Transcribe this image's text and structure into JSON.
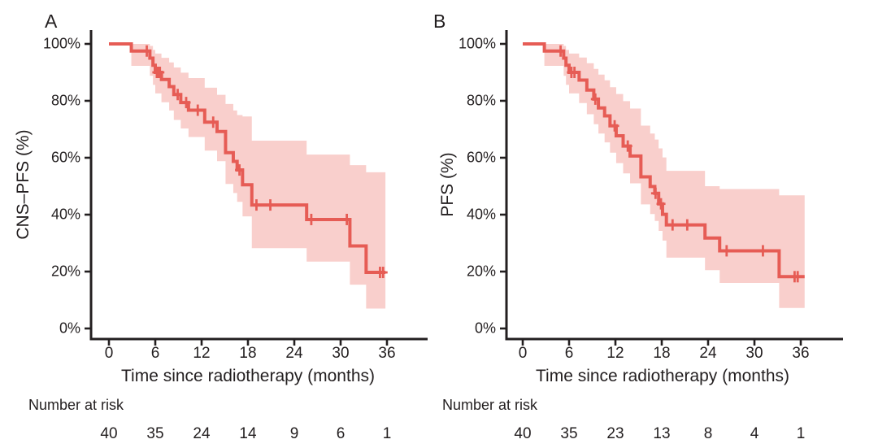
{
  "figure": {
    "background": "#ffffff",
    "text_color": "#231f20",
    "axis_color": "#231f20",
    "line_color": "#e65c55",
    "band_color": "#f9cfcc",
    "x_tick_labels": [
      "0",
      "6",
      "12",
      "18",
      "24",
      "30",
      "36"
    ],
    "x_tick_values": [
      0,
      6,
      12,
      18,
      24,
      30,
      36
    ],
    "y_tick_labels": [
      "100%",
      "80%",
      "60%",
      "40%",
      "20%",
      "0%"
    ],
    "y_tick_values": [
      100,
      80,
      60,
      40,
      20,
      0
    ]
  },
  "chart_data": [
    {
      "type": "line",
      "subtype": "kaplan-meier-step",
      "panel_label": "A",
      "ylabel": "CNS–PFS (%)",
      "xlabel": "Time since radiotherapy (months)",
      "risk_header": "Number at risk",
      "xlim": [
        0,
        41
      ],
      "ylim": [
        0,
        100
      ],
      "x_ticks": [
        0,
        6,
        12,
        18,
        24,
        30,
        36
      ],
      "y_ticks": [
        100,
        80,
        60,
        40,
        20,
        0
      ],
      "legend": "none",
      "grid": "off",
      "follow_up_end": 35.8,
      "steps": [
        [
          0,
          100
        ],
        [
          2.9,
          97.5
        ],
        [
          5.3,
          95
        ],
        [
          5.7,
          92.5
        ],
        [
          6,
          90
        ],
        [
          6.8,
          87.5
        ],
        [
          7.8,
          85
        ],
        [
          8.4,
          82.2
        ],
        [
          9.3,
          79.4
        ],
        [
          10.3,
          76.7
        ],
        [
          12.4,
          72.5
        ],
        [
          14,
          69.2
        ],
        [
          15.1,
          61.8
        ],
        [
          16.1,
          58.7
        ],
        [
          16.6,
          55.7
        ],
        [
          17.3,
          50.5
        ],
        [
          18.5,
          43.4
        ],
        [
          25.6,
          38.3
        ],
        [
          31.2,
          29
        ],
        [
          33.3,
          19.7
        ]
      ],
      "censor_marks": [
        [
          4.9,
          97.5
        ],
        [
          6.2,
          90
        ],
        [
          6.4,
          90
        ],
        [
          6.6,
          90
        ],
        [
          8.9,
          82.2
        ],
        [
          10,
          79.4
        ],
        [
          11.5,
          76.7
        ],
        [
          13.5,
          72.5
        ],
        [
          16.9,
          55.7
        ],
        [
          19.1,
          43.4
        ],
        [
          20.9,
          43.4
        ],
        [
          26.2,
          38.3
        ],
        [
          30.8,
          38.3
        ],
        [
          35.1,
          19.7
        ],
        [
          35.5,
          19.7
        ]
      ],
      "confidence_band": [
        [
          2.9,
          92.3,
          100
        ],
        [
          5.3,
          88.8,
          99.3
        ],
        [
          5.7,
          85.6,
          97.9
        ],
        [
          6,
          82.6,
          96.6
        ],
        [
          6.8,
          79.5,
          95.1
        ],
        [
          7.8,
          76.6,
          93.5
        ],
        [
          8.4,
          73.3,
          91.7
        ],
        [
          9.3,
          70.3,
          89.9
        ],
        [
          10.3,
          67.3,
          88
        ],
        [
          12.4,
          62.5,
          84.6
        ],
        [
          14,
          58.8,
          82.1
        ],
        [
          15.1,
          50.8,
          78.9
        ],
        [
          16.1,
          47.6,
          76.6
        ],
        [
          16.6,
          44.5,
          75
        ],
        [
          17.3,
          39.4,
          74.5
        ],
        [
          18.5,
          28.2,
          66
        ],
        [
          25.6,
          23.5,
          61.1
        ],
        [
          31.2,
          15.4,
          57.4
        ],
        [
          33.3,
          7,
          54.9
        ]
      ],
      "number_at_risk": [
        "40",
        "35",
        "24",
        "14",
        "9",
        "6",
        "1"
      ]
    },
    {
      "type": "line",
      "subtype": "kaplan-meier-step",
      "panel_label": "B",
      "ylabel": "PFS (%)",
      "xlabel": "Time since radiotherapy (months)",
      "risk_header": "Number at risk",
      "xlim": [
        0,
        41
      ],
      "ylim": [
        0,
        100
      ],
      "x_ticks": [
        0,
        6,
        12,
        18,
        24,
        30,
        36
      ],
      "y_ticks": [
        100,
        80,
        60,
        40,
        20,
        0
      ],
      "legend": "none",
      "grid": "off",
      "follow_up_end": 36.5,
      "steps": [
        [
          0,
          100
        ],
        [
          2.8,
          97.5
        ],
        [
          5.3,
          95
        ],
        [
          5.6,
          92.5
        ],
        [
          6,
          90
        ],
        [
          7.3,
          87.3
        ],
        [
          8.3,
          83.8
        ],
        [
          9.2,
          80.6
        ],
        [
          9.8,
          77.5
        ],
        [
          10.6,
          74.7
        ],
        [
          11.3,
          71.2
        ],
        [
          12.1,
          67.7
        ],
        [
          13,
          64.1
        ],
        [
          13.9,
          60.6
        ],
        [
          15.3,
          53.3
        ],
        [
          16.5,
          49.9
        ],
        [
          17.1,
          47.5
        ],
        [
          17.6,
          43.8
        ],
        [
          18.1,
          40.1
        ],
        [
          18.6,
          36.4
        ],
        [
          23.6,
          31.8
        ],
        [
          25.5,
          27.3
        ],
        [
          33.2,
          18.2
        ]
      ],
      "censor_marks": [
        [
          4.9,
          97.5
        ],
        [
          6.3,
          90
        ],
        [
          6.7,
          90
        ],
        [
          9.4,
          80.6
        ],
        [
          11.9,
          71.2
        ],
        [
          13.6,
          64.1
        ],
        [
          17.2,
          47.5
        ],
        [
          17.9,
          43.8
        ],
        [
          19.4,
          36.4
        ],
        [
          21.3,
          36.4
        ],
        [
          26.4,
          27.3
        ],
        [
          31.1,
          27.3
        ],
        [
          35.2,
          18.2
        ],
        [
          35.6,
          18.2
        ]
      ],
      "confidence_band": [
        [
          2.8,
          92.3,
          100
        ],
        [
          5.3,
          88.8,
          99.3
        ],
        [
          5.6,
          85.6,
          97.9
        ],
        [
          6,
          82.6,
          96.6
        ],
        [
          7.3,
          79.2,
          95.2
        ],
        [
          8.3,
          75.3,
          93.2
        ],
        [
          9.2,
          71.8,
          91.2
        ],
        [
          9.8,
          68.5,
          89.2
        ],
        [
          10.6,
          65.4,
          87.2
        ],
        [
          11.3,
          61.8,
          84.8
        ],
        [
          12.1,
          58.1,
          82.4
        ],
        [
          13,
          54.5,
          79.9
        ],
        [
          13.9,
          51,
          77.3
        ],
        [
          15.3,
          43.6,
          71.3
        ],
        [
          16.5,
          40.2,
          68.5
        ],
        [
          17.1,
          37.8,
          66.4
        ],
        [
          17.6,
          34.3,
          63.3
        ],
        [
          18.1,
          30.9,
          60.1
        ],
        [
          18.6,
          24.9,
          55.4
        ],
        [
          23.6,
          20.5,
          50
        ],
        [
          25.5,
          16,
          49
        ],
        [
          33.2,
          7.2,
          46.8
        ]
      ],
      "number_at_risk": [
        "40",
        "35",
        "23",
        "13",
        "8",
        "4",
        "1"
      ]
    }
  ]
}
